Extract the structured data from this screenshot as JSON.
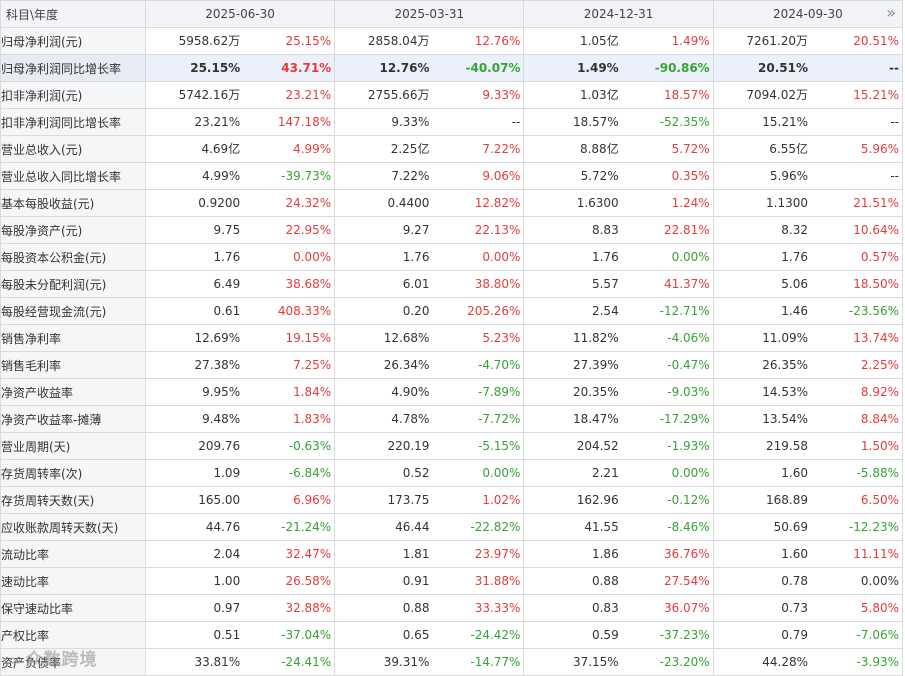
{
  "header": {
    "corner_label": "科目\\年度",
    "periods": [
      "2025-06-30",
      "2025-03-31",
      "2024-12-31",
      "2024-09-30"
    ],
    "more_icon": "»"
  },
  "colors": {
    "up": "#e53b3b",
    "down": "#35a335",
    "highlight_row": "#ebf0fb"
  },
  "rows": [
    {
      "label": "归母净利润(元)",
      "cells": [
        {
          "value": "5958.62万",
          "pct": "25.15%",
          "trend": "up"
        },
        {
          "value": "2858.04万",
          "pct": "12.76%",
          "trend": "up"
        },
        {
          "value": "1.05亿",
          "pct": "1.49%",
          "trend": "up"
        },
        {
          "value": "7261.20万",
          "pct": "20.51%",
          "trend": "up"
        }
      ]
    },
    {
      "label": "归母净利润同比增长率",
      "highlight": true,
      "cells": [
        {
          "value": "25.15%",
          "pct": "43.71%",
          "trend": "up"
        },
        {
          "value": "12.76%",
          "pct": "-40.07%",
          "trend": "down"
        },
        {
          "value": "1.49%",
          "pct": "-90.86%",
          "trend": "down"
        },
        {
          "value": "20.51%",
          "pct": "--",
          "trend": "flat"
        }
      ]
    },
    {
      "label": "扣非净利润(元)",
      "cells": [
        {
          "value": "5742.16万",
          "pct": "23.21%",
          "trend": "up"
        },
        {
          "value": "2755.66万",
          "pct": "9.33%",
          "trend": "up"
        },
        {
          "value": "1.03亿",
          "pct": "18.57%",
          "trend": "up"
        },
        {
          "value": "7094.02万",
          "pct": "15.21%",
          "trend": "up"
        }
      ]
    },
    {
      "label": "扣非净利润同比增长率",
      "cells": [
        {
          "value": "23.21%",
          "pct": "147.18%",
          "trend": "up"
        },
        {
          "value": "9.33%",
          "pct": "--",
          "trend": "flat"
        },
        {
          "value": "18.57%",
          "pct": "-52.35%",
          "trend": "down"
        },
        {
          "value": "15.21%",
          "pct": "--",
          "trend": "flat"
        }
      ]
    },
    {
      "label": "营业总收入(元)",
      "cells": [
        {
          "value": "4.69亿",
          "pct": "4.99%",
          "trend": "up"
        },
        {
          "value": "2.25亿",
          "pct": "7.22%",
          "trend": "up"
        },
        {
          "value": "8.88亿",
          "pct": "5.72%",
          "trend": "up"
        },
        {
          "value": "6.55亿",
          "pct": "5.96%",
          "trend": "up"
        }
      ]
    },
    {
      "label": "营业总收入同比增长率",
      "cells": [
        {
          "value": "4.99%",
          "pct": "-39.73%",
          "trend": "down"
        },
        {
          "value": "7.22%",
          "pct": "9.06%",
          "trend": "up"
        },
        {
          "value": "5.72%",
          "pct": "0.35%",
          "trend": "up"
        },
        {
          "value": "5.96%",
          "pct": "--",
          "trend": "flat"
        }
      ]
    },
    {
      "label": "基本每股收益(元)",
      "cells": [
        {
          "value": "0.9200",
          "pct": "24.32%",
          "trend": "up"
        },
        {
          "value": "0.4400",
          "pct": "12.82%",
          "trend": "up"
        },
        {
          "value": "1.6300",
          "pct": "1.24%",
          "trend": "up"
        },
        {
          "value": "1.1300",
          "pct": "21.51%",
          "trend": "up"
        }
      ]
    },
    {
      "label": "每股净资产(元)",
      "cells": [
        {
          "value": "9.75",
          "pct": "22.95%",
          "trend": "up"
        },
        {
          "value": "9.27",
          "pct": "22.13%",
          "trend": "up"
        },
        {
          "value": "8.83",
          "pct": "22.81%",
          "trend": "up"
        },
        {
          "value": "8.32",
          "pct": "10.64%",
          "trend": "up"
        }
      ]
    },
    {
      "label": "每股资本公积金(元)",
      "cells": [
        {
          "value": "1.76",
          "pct": "0.00%",
          "trend": "up"
        },
        {
          "value": "1.76",
          "pct": "0.00%",
          "trend": "up"
        },
        {
          "value": "1.76",
          "pct": "0.00%",
          "trend": "down"
        },
        {
          "value": "1.76",
          "pct": "0.57%",
          "trend": "up"
        }
      ]
    },
    {
      "label": "每股未分配利润(元)",
      "cells": [
        {
          "value": "6.49",
          "pct": "38.68%",
          "trend": "up"
        },
        {
          "value": "6.01",
          "pct": "38.80%",
          "trend": "up"
        },
        {
          "value": "5.57",
          "pct": "41.37%",
          "trend": "up"
        },
        {
          "value": "5.06",
          "pct": "18.50%",
          "trend": "up"
        }
      ]
    },
    {
      "label": "每股经营现金流(元)",
      "cells": [
        {
          "value": "0.61",
          "pct": "408.33%",
          "trend": "up"
        },
        {
          "value": "0.20",
          "pct": "205.26%",
          "trend": "up"
        },
        {
          "value": "2.54",
          "pct": "-12.71%",
          "trend": "down"
        },
        {
          "value": "1.46",
          "pct": "-23.56%",
          "trend": "down"
        }
      ]
    },
    {
      "label": "销售净利率",
      "cells": [
        {
          "value": "12.69%",
          "pct": "19.15%",
          "trend": "up"
        },
        {
          "value": "12.68%",
          "pct": "5.23%",
          "trend": "up"
        },
        {
          "value": "11.82%",
          "pct": "-4.06%",
          "trend": "down"
        },
        {
          "value": "11.09%",
          "pct": "13.74%",
          "trend": "up"
        }
      ]
    },
    {
      "label": "销售毛利率",
      "cells": [
        {
          "value": "27.38%",
          "pct": "7.25%",
          "trend": "up"
        },
        {
          "value": "26.34%",
          "pct": "-4.70%",
          "trend": "down"
        },
        {
          "value": "27.39%",
          "pct": "-0.47%",
          "trend": "down"
        },
        {
          "value": "26.35%",
          "pct": "2.25%",
          "trend": "up"
        }
      ]
    },
    {
      "label": "净资产收益率",
      "cells": [
        {
          "value": "9.95%",
          "pct": "1.84%",
          "trend": "up"
        },
        {
          "value": "4.90%",
          "pct": "-7.89%",
          "trend": "down"
        },
        {
          "value": "20.35%",
          "pct": "-9.03%",
          "trend": "down"
        },
        {
          "value": "14.53%",
          "pct": "8.92%",
          "trend": "up"
        }
      ]
    },
    {
      "label": "净资产收益率-摊薄",
      "cells": [
        {
          "value": "9.48%",
          "pct": "1.83%",
          "trend": "up"
        },
        {
          "value": "4.78%",
          "pct": "-7.72%",
          "trend": "down"
        },
        {
          "value": "18.47%",
          "pct": "-17.29%",
          "trend": "down"
        },
        {
          "value": "13.54%",
          "pct": "8.84%",
          "trend": "up"
        }
      ]
    },
    {
      "label": "营业周期(天)",
      "cells": [
        {
          "value": "209.76",
          "pct": "-0.63%",
          "trend": "down"
        },
        {
          "value": "220.19",
          "pct": "-5.15%",
          "trend": "down"
        },
        {
          "value": "204.52",
          "pct": "-1.93%",
          "trend": "down"
        },
        {
          "value": "219.58",
          "pct": "1.50%",
          "trend": "up"
        }
      ]
    },
    {
      "label": "存货周转率(次)",
      "cells": [
        {
          "value": "1.09",
          "pct": "-6.84%",
          "trend": "down"
        },
        {
          "value": "0.52",
          "pct": "0.00%",
          "trend": "down"
        },
        {
          "value": "2.21",
          "pct": "0.00%",
          "trend": "down"
        },
        {
          "value": "1.60",
          "pct": "-5.88%",
          "trend": "down"
        }
      ]
    },
    {
      "label": "存货周转天数(天)",
      "cells": [
        {
          "value": "165.00",
          "pct": "6.96%",
          "trend": "up"
        },
        {
          "value": "173.75",
          "pct": "1.02%",
          "trend": "up"
        },
        {
          "value": "162.96",
          "pct": "-0.12%",
          "trend": "down"
        },
        {
          "value": "168.89",
          "pct": "6.50%",
          "trend": "up"
        }
      ]
    },
    {
      "label": "应收账款周转天数(天)",
      "cells": [
        {
          "value": "44.76",
          "pct": "-21.24%",
          "trend": "down"
        },
        {
          "value": "46.44",
          "pct": "-22.82%",
          "trend": "down"
        },
        {
          "value": "41.55",
          "pct": "-8.46%",
          "trend": "down"
        },
        {
          "value": "50.69",
          "pct": "-12.23%",
          "trend": "down"
        }
      ]
    },
    {
      "label": "流动比率",
      "cells": [
        {
          "value": "2.04",
          "pct": "32.47%",
          "trend": "up"
        },
        {
          "value": "1.81",
          "pct": "23.97%",
          "trend": "up"
        },
        {
          "value": "1.86",
          "pct": "36.76%",
          "trend": "up"
        },
        {
          "value": "1.60",
          "pct": "11.11%",
          "trend": "up"
        }
      ]
    },
    {
      "label": "速动比率",
      "cells": [
        {
          "value": "1.00",
          "pct": "26.58%",
          "trend": "up"
        },
        {
          "value": "0.91",
          "pct": "31.88%",
          "trend": "up"
        },
        {
          "value": "0.88",
          "pct": "27.54%",
          "trend": "up"
        },
        {
          "value": "0.78",
          "pct": "0.00%",
          "trend": "flat"
        }
      ]
    },
    {
      "label": "保守速动比率",
      "cells": [
        {
          "value": "0.97",
          "pct": "32.88%",
          "trend": "up"
        },
        {
          "value": "0.88",
          "pct": "33.33%",
          "trend": "up"
        },
        {
          "value": "0.83",
          "pct": "36.07%",
          "trend": "up"
        },
        {
          "value": "0.73",
          "pct": "5.80%",
          "trend": "up"
        }
      ]
    },
    {
      "label": "产权比率",
      "cells": [
        {
          "value": "0.51",
          "pct": "-37.04%",
          "trend": "down"
        },
        {
          "value": "0.65",
          "pct": "-24.42%",
          "trend": "down"
        },
        {
          "value": "0.59",
          "pct": "-37.23%",
          "trend": "down"
        },
        {
          "value": "0.79",
          "pct": "-7.06%",
          "trend": "down"
        }
      ]
    },
    {
      "label": "资产负债率",
      "cells": [
        {
          "value": "33.81%",
          "pct": "-24.41%",
          "trend": "down"
        },
        {
          "value": "39.31%",
          "pct": "-14.77%",
          "trend": "down"
        },
        {
          "value": "37.15%",
          "pct": "-23.20%",
          "trend": "down"
        },
        {
          "value": "44.28%",
          "pct": "-3.93%",
          "trend": "down"
        }
      ]
    }
  ],
  "watermark": {
    "text": "众数跨境",
    "logo_icon": "∞"
  }
}
